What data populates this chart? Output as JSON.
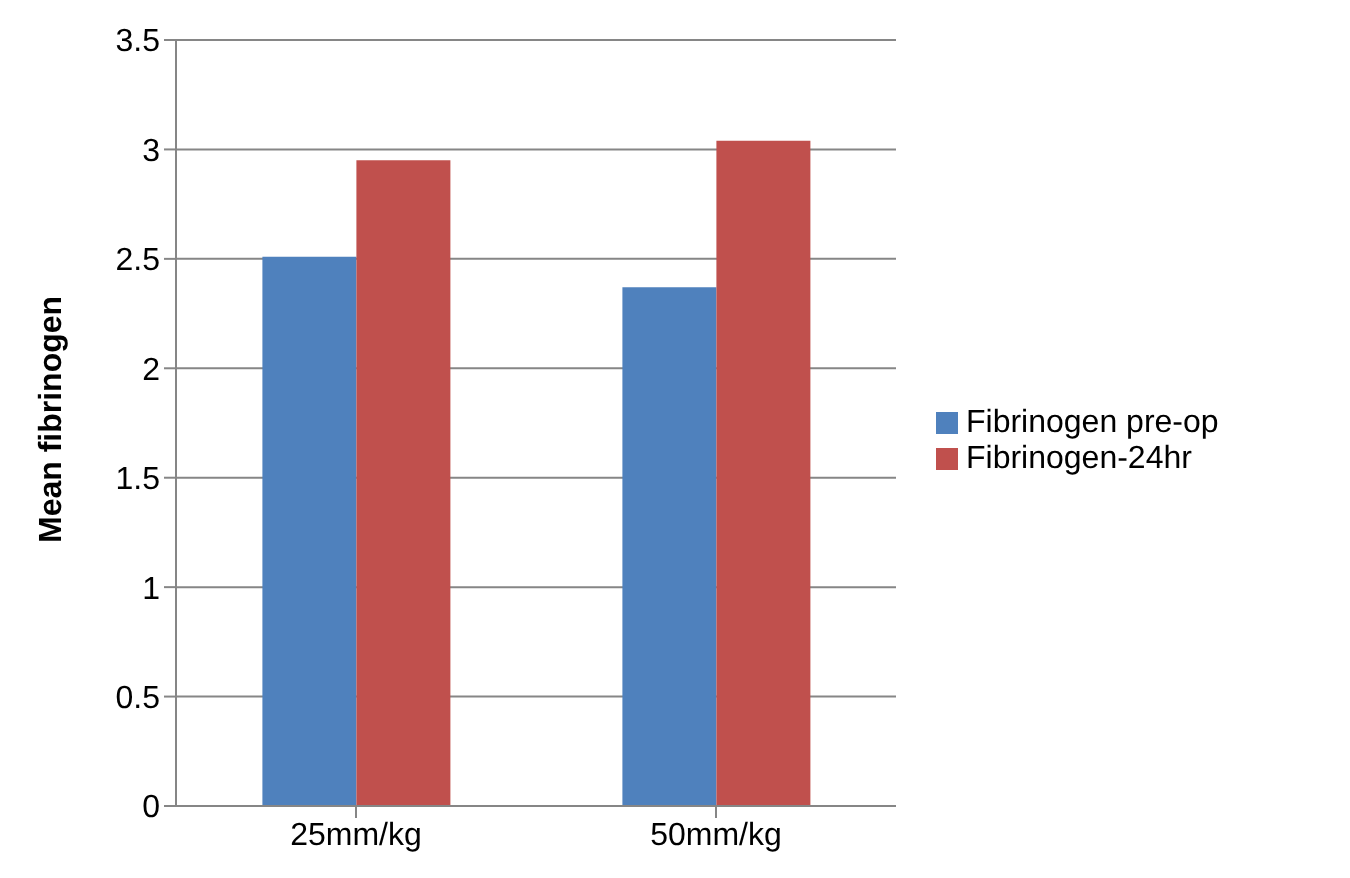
{
  "chart_data": {
    "type": "bar",
    "ylabel": "Mean fibrinogen",
    "categories": [
      "25mm/kg",
      "50mm/kg"
    ],
    "series": [
      {
        "name": "Fibrinogen pre-op",
        "color": "#4f81bd",
        "values": [
          2.51,
          2.37
        ]
      },
      {
        "name": "Fibrinogen-24hr",
        "color": "#c0504d",
        "values": [
          2.95,
          3.04
        ]
      }
    ],
    "ylim": [
      0,
      3.5
    ],
    "yticks": [
      0,
      0.5,
      1,
      1.5,
      2,
      2.5,
      3,
      3.5
    ],
    "grid": "y",
    "legend": "right"
  }
}
